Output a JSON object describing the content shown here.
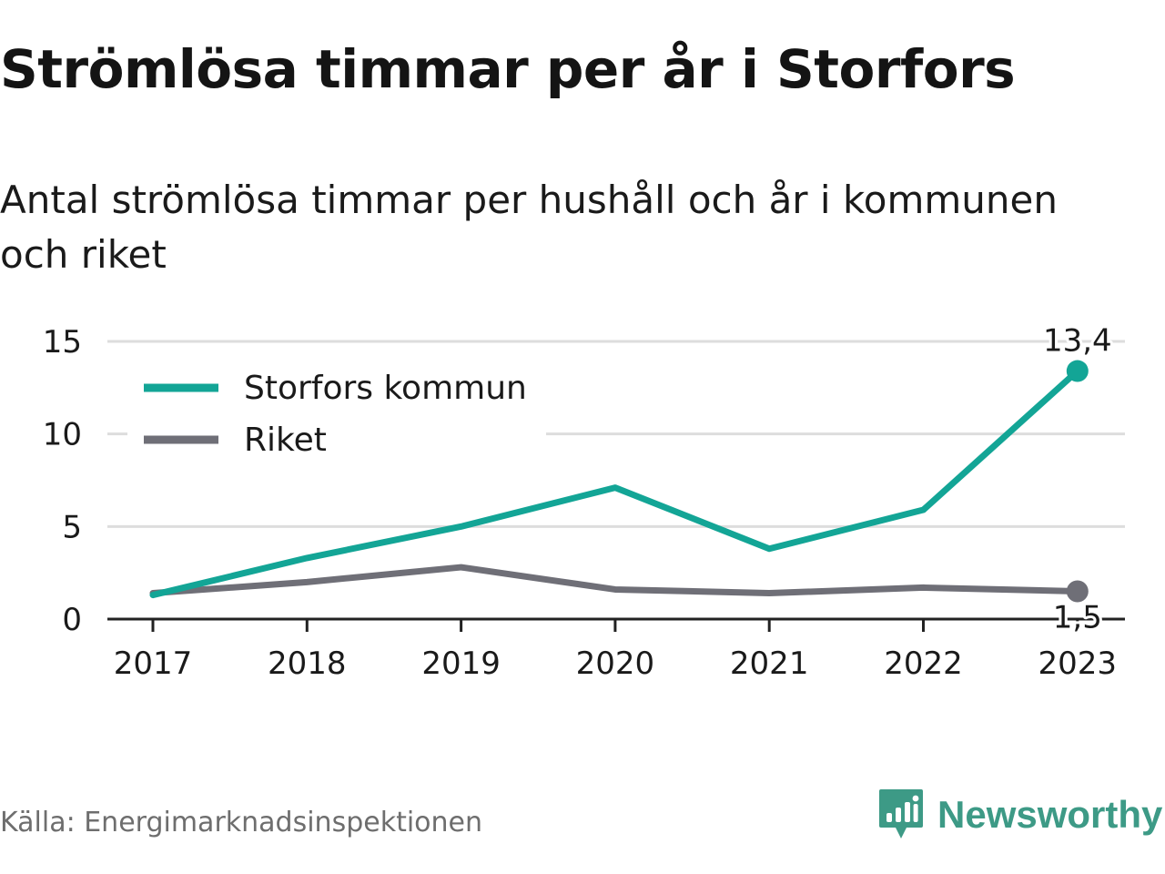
{
  "header": {
    "title": "Strömlösa timmar per år i Storfors",
    "subtitle": "Antal strömlösa timmar per hushåll och år i kommunen och riket"
  },
  "footer": {
    "source": "Källa: Energimarknadsinspektionen",
    "brand": "Newsworthy",
    "brand_icon": "bar-chart-speech-bubble-icon"
  },
  "colors": {
    "storfors": "#13a596",
    "riket": "#6f6f77",
    "grid": "#dddddd",
    "axis": "#222222",
    "brand": "#3d9a86"
  },
  "chart_data": {
    "type": "line",
    "x": [
      "2017",
      "2018",
      "2019",
      "2020",
      "2021",
      "2022",
      "2023"
    ],
    "ylim": [
      0,
      15
    ],
    "yticks": [
      "0",
      "5",
      "10",
      "15"
    ],
    "grid": true,
    "legend_position": "top-left",
    "series": [
      {
        "name": "Storfors kommun",
        "values": [
          1.3,
          3.3,
          5.0,
          7.1,
          3.8,
          5.9,
          13.4
        ],
        "end_label": "13,4"
      },
      {
        "name": "Riket",
        "values": [
          1.4,
          2.0,
          2.8,
          1.6,
          1.4,
          1.7,
          1.5
        ],
        "end_label": "1,5"
      }
    ]
  }
}
